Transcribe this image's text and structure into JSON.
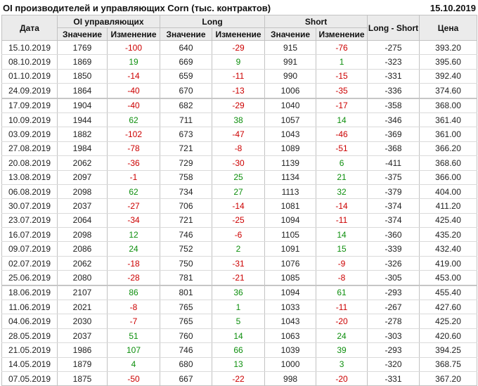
{
  "title": "OI производителей и управляющих Corn (тыс. контрактов)",
  "report_date": "15.10.2019",
  "headers": {
    "date": "Дата",
    "oi_group": "OI управляющих",
    "long_group": "Long",
    "short_group": "Short",
    "value": "Значение",
    "change": "Изменение",
    "long_short": "Long - Short",
    "price": "Цена"
  },
  "colors": {
    "negative_change": "#cc0000",
    "positive_change": "#0e8f0e",
    "header_background": "#ebebeb",
    "grid_line": "#c2c2c2"
  },
  "heavy_separator_after": [
    "24.09.2019",
    "25.06.2019"
  ],
  "chart_data": {
    "type": "table",
    "title": "OI производителей и управляющих Corn (тыс. контрактов)",
    "as_of_date": "15.10.2019",
    "columns": [
      "Дата",
      "OI управляющих Значение",
      "OI управляющих Изменение",
      "Long Значение",
      "Long Изменение",
      "Short Значение",
      "Short Изменение",
      "Long - Short",
      "Цена"
    ],
    "rows": [
      [
        "15.10.2019",
        1769,
        -100,
        640,
        -29,
        915,
        -76,
        -275,
        "393.20"
      ],
      [
        "08.10.2019",
        1869,
        19,
        669,
        9,
        991,
        1,
        -323,
        "395.60"
      ],
      [
        "01.10.2019",
        1850,
        -14,
        659,
        -11,
        990,
        -15,
        -331,
        "392.40"
      ],
      [
        "24.09.2019",
        1864,
        -40,
        670,
        -13,
        1006,
        -35,
        -336,
        "374.60"
      ],
      [
        "17.09.2019",
        1904,
        -40,
        682,
        -29,
        1040,
        -17,
        -358,
        "368.00"
      ],
      [
        "10.09.2019",
        1944,
        62,
        711,
        38,
        1057,
        14,
        -346,
        "361.40"
      ],
      [
        "03.09.2019",
        1882,
        -102,
        673,
        -47,
        1043,
        -46,
        -369,
        "361.00"
      ],
      [
        "27.08.2019",
        1984,
        -78,
        721,
        -8,
        1089,
        -51,
        -368,
        "366.20"
      ],
      [
        "20.08.2019",
        2062,
        -36,
        729,
        -30,
        1139,
        6,
        -411,
        "368.60"
      ],
      [
        "13.08.2019",
        2097,
        -1,
        758,
        25,
        1134,
        21,
        -375,
        "366.00"
      ],
      [
        "06.08.2019",
        2098,
        62,
        734,
        27,
        1113,
        32,
        -379,
        "404.00"
      ],
      [
        "30.07.2019",
        2037,
        -27,
        706,
        -14,
        1081,
        -14,
        -374,
        "411.20"
      ],
      [
        "23.07.2019",
        2064,
        -34,
        721,
        -25,
        1094,
        -11,
        -374,
        "425.40"
      ],
      [
        "16.07.2019",
        2098,
        12,
        746,
        -6,
        1105,
        14,
        -360,
        "435.20"
      ],
      [
        "09.07.2019",
        2086,
        24,
        752,
        2,
        1091,
        15,
        -339,
        "432.40"
      ],
      [
        "02.07.2019",
        2062,
        -18,
        750,
        -31,
        1076,
        -9,
        -326,
        "419.00"
      ],
      [
        "25.06.2019",
        2080,
        -28,
        781,
        -21,
        1085,
        -8,
        -305,
        "453.00"
      ],
      [
        "18.06.2019",
        2107,
        86,
        801,
        36,
        1094,
        61,
        -293,
        "455.40"
      ],
      [
        "11.06.2019",
        2021,
        -8,
        765,
        1,
        1033,
        -11,
        -267,
        "427.60"
      ],
      [
        "04.06.2019",
        2030,
        -7,
        765,
        5,
        1043,
        -20,
        -278,
        "425.20"
      ],
      [
        "28.05.2019",
        2037,
        51,
        760,
        14,
        1063,
        24,
        -303,
        "420.60"
      ],
      [
        "21.05.2019",
        1986,
        107,
        746,
        66,
        1039,
        39,
        -293,
        "394.25"
      ],
      [
        "14.05.2019",
        1879,
        4,
        680,
        13,
        1000,
        3,
        -320,
        "368.75"
      ],
      [
        "07.05.2019",
        1875,
        -50,
        667,
        -22,
        998,
        -20,
        -331,
        "367.20"
      ]
    ]
  }
}
